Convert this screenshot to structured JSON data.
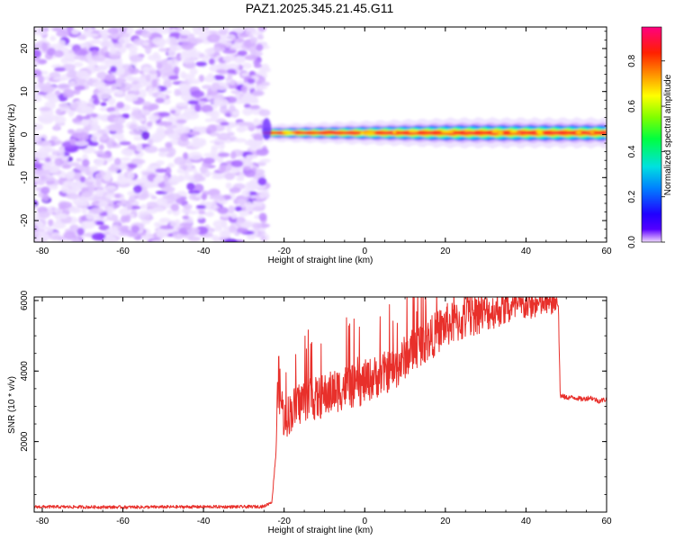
{
  "title": "PAZ1.2025.345.21.45.G11",
  "chart_data": [
    {
      "type": "heatmap",
      "xlabel": "Height of straight line (km)",
      "ylabel": "Frequency (Hz)",
      "xlim": [
        -82,
        60
      ],
      "ylim": [
        -25,
        25
      ],
      "xticks": [
        -80,
        -60,
        -40,
        -20,
        0,
        20,
        40,
        60
      ],
      "yticks": [
        -20,
        -10,
        0,
        10,
        20
      ],
      "colorbar": {
        "label": "Normalized spectral amplitude",
        "range": [
          0,
          0.95
        ],
        "ticks": [
          0.0,
          0.2,
          0.4,
          0.6,
          0.8
        ],
        "tick_labels": [
          "0.0",
          "0.2",
          "0.4",
          "0.6",
          "0.8"
        ],
        "colormap": "gist_rainbow"
      },
      "regions": [
        {
          "x_range": [
            -82,
            -25
          ],
          "freq_range": [
            -25,
            25
          ],
          "description_value": "noise",
          "amplitude_range": [
            0.0,
            0.2
          ]
        },
        {
          "x_range": [
            -25,
            60
          ],
          "freq_center": 0.5,
          "freq_halfwidth": 2.5,
          "amplitude_peak": 0.9
        }
      ]
    },
    {
      "type": "line",
      "xlabel": "Height of straight line (km)",
      "ylabel": "SNR (10 * v/v)",
      "xlim": [
        -82,
        60
      ],
      "ylim": [
        0,
        6100
      ],
      "xticks": [
        -80,
        -60,
        -40,
        -20,
        0,
        20,
        40,
        60
      ],
      "yticks": [
        2000,
        4000,
        6000
      ],
      "color": "#e8302b",
      "series": [
        {
          "x": [
            -82,
            -60,
            -40,
            -30,
            -25,
            -23,
            -22,
            -21.5,
            -20,
            -18,
            -16,
            -14,
            -12,
            -10,
            -8,
            -6,
            -4,
            -2,
            0,
            2,
            4,
            6,
            8,
            10,
            12,
            14,
            16,
            18,
            20,
            22,
            24,
            26,
            28,
            30,
            32,
            34,
            36,
            38,
            40,
            42,
            44,
            46,
            48,
            48.5,
            50,
            52,
            54,
            56,
            58,
            60
          ],
          "y": [
            150,
            140,
            150,
            150,
            160,
            300,
            1800,
            3800,
            2600,
            2900,
            3100,
            3300,
            3200,
            3300,
            3400,
            3500,
            3600,
            3500,
            3700,
            3800,
            3900,
            4000,
            4100,
            4400,
            4600,
            4800,
            4900,
            5100,
            5300,
            5350,
            5400,
            5500,
            5600,
            5650,
            5700,
            5750,
            5750,
            5800,
            5850,
            5850,
            5900,
            5900,
            5950,
            3300,
            3250,
            3250,
            3200,
            3250,
            3150,
            3200
          ]
        }
      ]
    }
  ]
}
